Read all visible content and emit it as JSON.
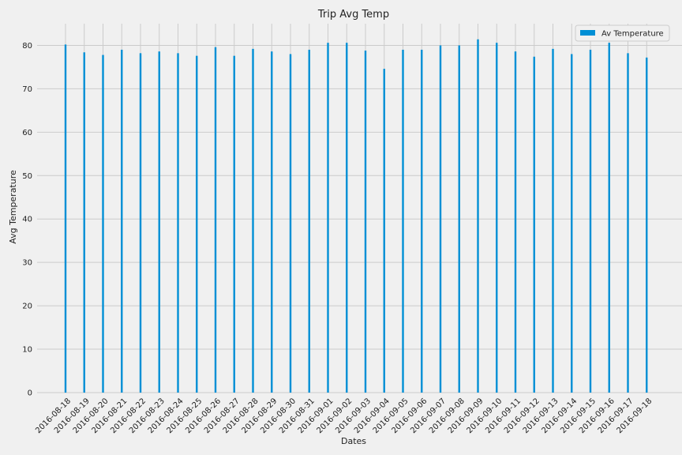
{
  "chart_data": {
    "type": "bar",
    "title": "Trip Avg Temp",
    "xlabel": "Dates",
    "ylabel": "Avg Temperature",
    "ylim": [
      0,
      85
    ],
    "yticks": [
      0,
      10,
      20,
      30,
      40,
      50,
      60,
      70,
      80
    ],
    "grid": true,
    "legend_position": "top-right",
    "bar_color": "#008fd5",
    "series": [
      {
        "name": "Av Temperature",
        "values": [
          80.2,
          78.4,
          77.8,
          79.0,
          78.2,
          78.6,
          78.2,
          77.6,
          79.6,
          77.6,
          79.2,
          78.6,
          78.0,
          79.0,
          80.6,
          80.6,
          78.8,
          74.6,
          79.0,
          79.0,
          80.0,
          80.0,
          81.4,
          80.6,
          78.6,
          77.4,
          79.2,
          78.0,
          79.0,
          80.6,
          78.2,
          77.2
        ]
      }
    ],
    "categories": [
      "2016-08-18",
      "2016-08-19",
      "2016-08-20",
      "2016-08-21",
      "2016-08-22",
      "2016-08-23",
      "2016-08-24",
      "2016-08-25",
      "2016-08-26",
      "2016-08-27",
      "2016-08-28",
      "2016-08-29",
      "2016-08-30",
      "2016-08-31",
      "2016-09-01",
      "2016-09-02",
      "2016-09-03",
      "2016-09-04",
      "2016-09-05",
      "2016-09-06",
      "2016-09-07",
      "2016-09-08",
      "2016-09-09",
      "2016-09-10",
      "2016-09-11",
      "2016-09-12",
      "2016-09-13",
      "2016-09-14",
      "2016-09-15",
      "2016-09-16",
      "2016-09-17",
      "2016-09-18"
    ]
  }
}
